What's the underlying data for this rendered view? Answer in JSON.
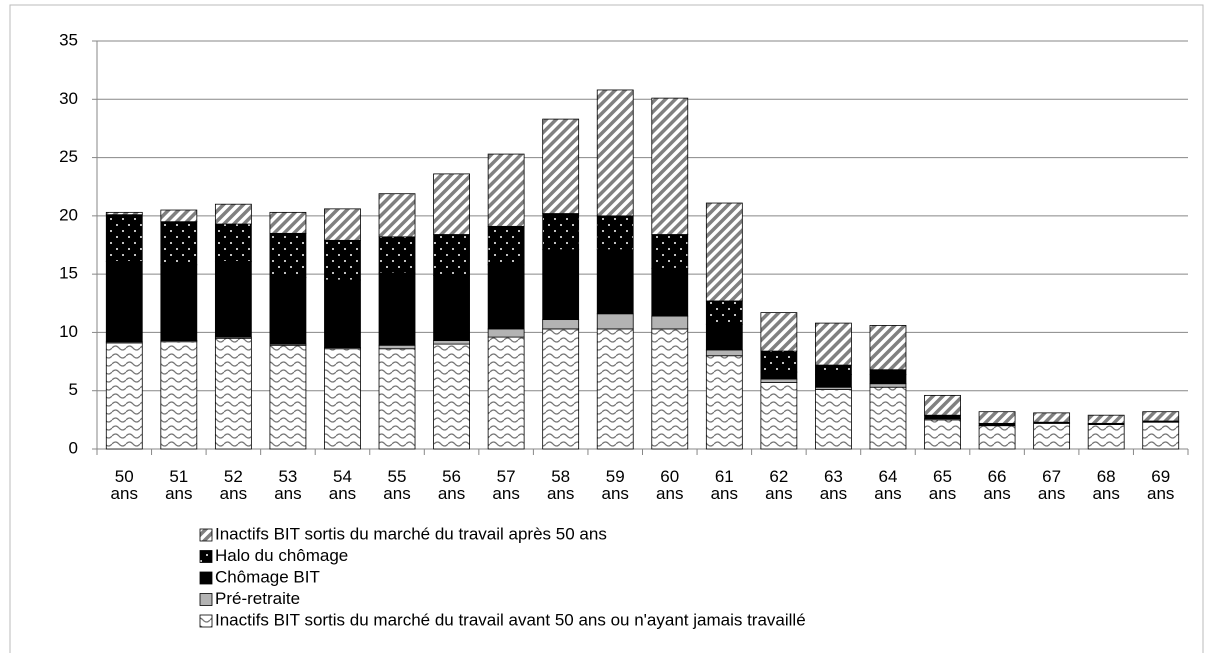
{
  "chart_data": {
    "type": "stacked_bar",
    "categories": [
      "50 ans",
      "51 ans",
      "52 ans",
      "53 ans",
      "54 ans",
      "55 ans",
      "56 ans",
      "57 ans",
      "58 ans",
      "59 ans",
      "60 ans",
      "61 ans",
      "62 ans",
      "63 ans",
      "64 ans",
      "65 ans",
      "66 ans",
      "67 ans",
      "68 ans",
      "69 ans"
    ],
    "series": [
      {
        "name": "Inactifs BIT sortis du marché du travail avant 50 ans ou n'ayant jamais travaillé",
        "color": "#ffffff",
        "values": [
          9.1,
          9.2,
          9.5,
          8.9,
          8.6,
          8.6,
          9.0,
          9.6,
          10.3,
          10.3,
          10.3,
          8.0,
          5.7,
          5.1,
          5.3,
          2.5,
          2.0,
          2.2,
          2.1,
          2.3
        ]
      },
      {
        "name": "Pré-retraite",
        "color": "#b3b3b3",
        "values": [
          0.1,
          0.1,
          0.1,
          0.1,
          0.1,
          0.3,
          0.3,
          0.7,
          0.8,
          1.3,
          1.1,
          0.5,
          0.3,
          0.2,
          0.3,
          0.1,
          0.0,
          0.0,
          0.0,
          0.0
        ]
      },
      {
        "name": "Chômage BIT",
        "color": "#000000",
        "values": [
          6.9,
          6.5,
          6.5,
          5.7,
          5.8,
          6.2,
          5.6,
          5.5,
          6.0,
          5.5,
          4.1,
          2.2,
          0.6,
          1.1,
          0.8,
          0.3,
          0.2,
          0.1,
          0.1,
          0.1
        ]
      },
      {
        "name": "Halo du chômage",
        "color": "#000000",
        "values": [
          4.0,
          3.7,
          3.2,
          3.8,
          3.4,
          3.1,
          3.5,
          3.3,
          3.1,
          2.9,
          2.9,
          2.0,
          1.8,
          0.8,
          0.4,
          0.0,
          0.0,
          0.0,
          0.0,
          0.0
        ]
      },
      {
        "name": "Inactifs BIT sortis du marché du travail après 50 ans",
        "color": "#ffffff",
        "values": [
          0.2,
          1.0,
          1.7,
          1.8,
          2.7,
          3.7,
          5.2,
          6.2,
          8.1,
          10.8,
          11.7,
          8.4,
          3.3,
          3.6,
          3.8,
          1.7,
          1.0,
          0.8,
          0.7,
          0.8
        ]
      }
    ],
    "ylim": [
      0,
      35
    ],
    "yticks": [
      0,
      5,
      10,
      15,
      20,
      25,
      30,
      35
    ],
    "grid": true
  }
}
